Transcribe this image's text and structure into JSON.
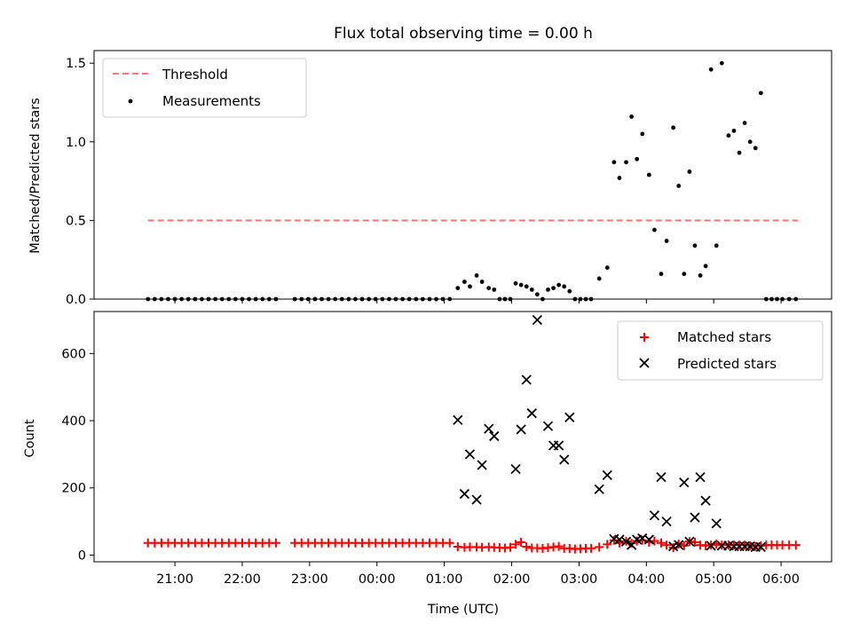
{
  "chart_data": [
    {
      "type": "scatter",
      "title": "Flux total observing time = 0.00 h",
      "xlabel": "",
      "ylabel": "Matched/Predicted stars",
      "ylim": [
        0.0,
        1.58
      ],
      "yticks": [
        0.0,
        0.5,
        1.0,
        1.5
      ],
      "ytick_labels": [
        "0.0",
        "0.5",
        "1.0",
        "1.5"
      ],
      "grid": false,
      "legend_position": "upper-left",
      "colors": {
        "threshold": "#ff7373",
        "measurements": "#000000"
      },
      "series": [
        {
          "name": "Threshold",
          "kind": "dashed-line",
          "x_hours": [
            -3.4,
            6.25
          ],
          "y": [
            0.5,
            0.5
          ]
        },
        {
          "name": "Measurements",
          "kind": "points",
          "x_hours": [
            -3.4,
            -3.3,
            -3.2,
            -3.1,
            -3.0,
            -2.9,
            -2.8,
            -2.7,
            -2.6,
            -2.5,
            -2.4,
            -2.3,
            -2.2,
            -2.1,
            -2.0,
            -1.9,
            -1.8,
            -1.7,
            -1.6,
            -1.5,
            -1.22,
            -1.12,
            -1.02,
            -0.92,
            -0.82,
            -0.72,
            -0.62,
            -0.52,
            -0.42,
            -0.32,
            -0.22,
            -0.12,
            -0.02,
            0.08,
            0.18,
            0.28,
            0.38,
            0.48,
            0.58,
            0.68,
            0.78,
            0.88,
            0.98,
            1.08,
            1.2,
            1.3,
            1.38,
            1.48,
            1.56,
            1.66,
            1.74,
            1.82,
            1.9,
            1.98,
            2.06,
            2.14,
            2.22,
            2.3,
            2.38,
            2.46,
            2.54,
            2.62,
            2.7,
            2.78,
            2.86,
            2.94,
            3.02,
            3.1,
            3.18,
            3.3,
            3.42,
            3.52,
            3.6,
            3.7,
            3.78,
            3.86,
            3.94,
            4.04,
            4.12,
            4.22,
            4.3,
            4.4,
            4.48,
            4.56,
            4.64,
            4.72,
            4.8,
            4.88,
            4.96,
            5.04,
            5.12,
            5.22,
            5.3,
            5.38,
            5.46,
            5.54,
            5.62,
            5.7,
            5.78,
            5.86,
            5.94,
            6.02,
            6.12,
            6.22
          ],
          "y": [
            0,
            0,
            0,
            0,
            0,
            0,
            0,
            0,
            0,
            0,
            0,
            0,
            0,
            0,
            0,
            0,
            0,
            0,
            0,
            0,
            0,
            0,
            0,
            0,
            0,
            0,
            0,
            0,
            0,
            0,
            0,
            0,
            0,
            0,
            0,
            0,
            0,
            0,
            0,
            0,
            0,
            0,
            0,
            0,
            0.07,
            0.11,
            0.08,
            0.15,
            0.11,
            0.07,
            0.06,
            0,
            0,
            0,
            0.1,
            0.09,
            0.08,
            0.06,
            0.03,
            0,
            0.06,
            0.07,
            0.09,
            0.08,
            0.05,
            0,
            0,
            0,
            0,
            0.13,
            0.2,
            0.87,
            0.77,
            0.87,
            1.16,
            0.89,
            1.05,
            0.79,
            0.44,
            0.16,
            0.37,
            1.09,
            0.72,
            0.16,
            0.81,
            0.34,
            0.15,
            0.21,
            1.46,
            0.34,
            1.5,
            1.04,
            1.07,
            0.93,
            1.12,
            1.0,
            0.96,
            1.31,
            0,
            0,
            0,
            0,
            0,
            0
          ]
        }
      ]
    },
    {
      "type": "scatter",
      "title": "",
      "xlabel": "Time (UTC)",
      "ylabel": "Count",
      "ylim": [
        -20,
        725
      ],
      "yticks": [
        0,
        200,
        400,
        600
      ],
      "ytick_labels": [
        "0",
        "200",
        "400",
        "600"
      ],
      "x_range_hours": [
        -4.2,
        6.75
      ],
      "xticks_hours": [
        -3,
        -2,
        -1,
        0,
        1,
        2,
        3,
        4,
        5,
        6
      ],
      "xtick_labels": [
        "21:00",
        "22:00",
        "23:00",
        "00:00",
        "01:00",
        "02:00",
        "03:00",
        "04:00",
        "05:00",
        "06:00"
      ],
      "grid": false,
      "legend_position": "upper-right",
      "colors": {
        "matched": "#ff0000",
        "predicted": "#000000"
      },
      "series": [
        {
          "name": "Matched stars",
          "marker": "plus",
          "x_hours": [
            -3.4,
            -3.3,
            -3.2,
            -3.1,
            -3.0,
            -2.9,
            -2.8,
            -2.7,
            -2.6,
            -2.5,
            -2.4,
            -2.3,
            -2.2,
            -2.1,
            -2.0,
            -1.9,
            -1.8,
            -1.7,
            -1.6,
            -1.5,
            -1.22,
            -1.12,
            -1.02,
            -0.92,
            -0.82,
            -0.72,
            -0.62,
            -0.52,
            -0.42,
            -0.32,
            -0.22,
            -0.12,
            -0.02,
            0.08,
            0.18,
            0.28,
            0.38,
            0.48,
            0.58,
            0.68,
            0.78,
            0.88,
            0.98,
            1.08,
            1.2,
            1.3,
            1.38,
            1.48,
            1.56,
            1.66,
            1.74,
            1.82,
            1.9,
            1.98,
            2.06,
            2.14,
            2.22,
            2.3,
            2.38,
            2.46,
            2.54,
            2.62,
            2.7,
            2.78,
            2.86,
            2.94,
            3.02,
            3.1,
            3.18,
            3.3,
            3.42,
            3.52,
            3.6,
            3.7,
            3.78,
            3.86,
            3.94,
            4.04,
            4.12,
            4.22,
            4.3,
            4.4,
            4.48,
            4.56,
            4.64,
            4.72,
            4.8,
            4.88,
            4.96,
            5.04,
            5.12,
            5.22,
            5.3,
            5.38,
            5.46,
            5.54,
            5.62,
            5.7,
            5.78,
            5.86,
            5.94,
            6.02,
            6.12,
            6.22
          ],
          "y": [
            36,
            36,
            36,
            36,
            36,
            36,
            36,
            36,
            36,
            36,
            36,
            36,
            36,
            36,
            36,
            36,
            36,
            36,
            36,
            36,
            36,
            36,
            36,
            36,
            36,
            36,
            36,
            36,
            36,
            36,
            36,
            36,
            36,
            36,
            36,
            36,
            36,
            36,
            36,
            36,
            36,
            36,
            36,
            36,
            25,
            23,
            24,
            24,
            23,
            24,
            23,
            22,
            21,
            23,
            32,
            38,
            25,
            21,
            21,
            20,
            22,
            24,
            26,
            20,
            20,
            18,
            19,
            20,
            20,
            24,
            32,
            44,
            36,
            41,
            35,
            42,
            44,
            38,
            42,
            36,
            30,
            22,
            33,
            28,
            40,
            38,
            30,
            28,
            30,
            33,
            30,
            30,
            30,
            30,
            30,
            28,
            26,
            28,
            30,
            30,
            30,
            30,
            30,
            30
          ]
        },
        {
          "name": "Predicted stars",
          "marker": "x",
          "x_hours": [
            1.2,
            1.3,
            1.38,
            1.48,
            1.56,
            1.66,
            1.74,
            2.06,
            2.14,
            2.22,
            2.3,
            2.38,
            2.54,
            2.62,
            2.7,
            2.78,
            2.86,
            3.3,
            3.42,
            3.52,
            3.6,
            3.7,
            3.78,
            3.86,
            3.94,
            4.04,
            4.12,
            4.22,
            4.3,
            4.4,
            4.48,
            4.56,
            4.64,
            4.72,
            4.8,
            4.88,
            4.96,
            5.04,
            5.12,
            5.22,
            5.3,
            5.38,
            5.46,
            5.54,
            5.62,
            5.7
          ],
          "y": [
            402,
            182,
            300,
            165,
            268,
            376,
            354,
            256,
            374,
            522,
            422,
            700,
            384,
            326,
            326,
            284,
            410,
            196,
            238,
            48,
            46,
            40,
            30,
            46,
            50,
            46,
            118,
            232,
            100,
            26,
            30,
            216,
            40,
            112,
            232,
            162,
            28,
            94,
            28,
            28,
            26,
            26,
            26,
            26,
            24,
            24
          ]
        }
      ]
    }
  ]
}
